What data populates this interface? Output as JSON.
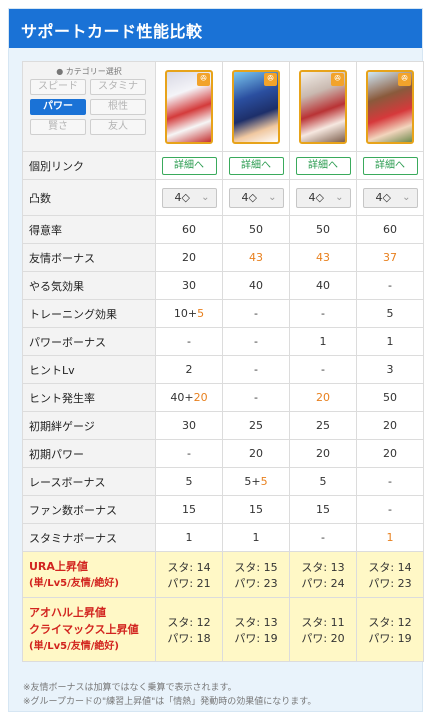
{
  "header": {
    "title": "サポートカード性能比較"
  },
  "category": {
    "title": "● カテゴリー選択",
    "options": [
      {
        "label": "スピード",
        "active": false
      },
      {
        "label": "スタミナ",
        "active": false
      },
      {
        "label": "パワー",
        "active": true
      },
      {
        "label": "根性",
        "active": false
      },
      {
        "label": "賢さ",
        "active": false
      },
      {
        "label": "友人",
        "active": false
      }
    ]
  },
  "cards": [
    {
      "badge_icon": "power-type-icon",
      "badge_glyph": "ꔮ"
    },
    {
      "badge_icon": "power-type-icon",
      "badge_glyph": "ꔮ"
    },
    {
      "badge_icon": "power-type-icon",
      "badge_glyph": "ꔮ"
    },
    {
      "badge_icon": "power-type-icon",
      "badge_glyph": "ꔮ"
    }
  ],
  "rows": {
    "link": {
      "label": "個別リンク",
      "button": "詳細へ"
    },
    "limitbreak": {
      "label": "凸数",
      "value": "4",
      "icon": "diamond-icon"
    },
    "specialty": {
      "label": "得意率",
      "values": [
        "60",
        "50",
        "50",
        "60"
      ]
    },
    "friendship": {
      "label": "友情ボーナス",
      "values": [
        "20",
        "43",
        "43",
        "37"
      ]
    },
    "motivation": {
      "label": "やる気効果",
      "values": [
        "30",
        "40",
        "40",
        "-"
      ]
    },
    "training": {
      "label": "トレーニング効果",
      "v1a": "10+",
      "v1b": "5",
      "values": [
        "-",
        "-",
        "5"
      ]
    },
    "powerbonus": {
      "label": "パワーボーナス",
      "values": [
        "-",
        "-",
        "1",
        "1"
      ]
    },
    "hintlv": {
      "label": "ヒントLv",
      "values": [
        "2",
        "-",
        "-",
        "3"
      ]
    },
    "hintrate": {
      "label": "ヒント発生率",
      "v1a": "40+",
      "v1b": "20",
      "values": [
        "-",
        "20",
        "50"
      ]
    },
    "initbond": {
      "label": "初期絆ゲージ",
      "values": [
        "30",
        "25",
        "25",
        "20"
      ]
    },
    "initpower": {
      "label": "初期パワー",
      "values": [
        "-",
        "20",
        "20",
        "20"
      ]
    },
    "race": {
      "label": "レースボーナス",
      "v1": "5",
      "v2a": "5+",
      "v2b": "5",
      "values": [
        "5",
        "-"
      ]
    },
    "fans": {
      "label": "ファン数ボーナス",
      "values": [
        "15",
        "15",
        "15",
        "-"
      ]
    },
    "stamina": {
      "label": "スタミナボーナス",
      "values": [
        "1",
        "1",
        "-",
        "1"
      ]
    },
    "ura": {
      "label": "URA上昇値",
      "sub": "(単/Lv5/友情/絶好)",
      "values": [
        [
          "スタ: 14",
          "パワ: 21"
        ],
        [
          "スタ: 15",
          "パワ: 23"
        ],
        [
          "スタ: 13",
          "パワ: 24"
        ],
        [
          "スタ: 14",
          "パワ: 23"
        ]
      ]
    },
    "aoharu": {
      "label1": "アオハル上昇値",
      "label2": "クライマックス上昇値",
      "sub": "(単/Lv5/友情/絶好)",
      "values": [
        [
          "スタ: 12",
          "パワ: 18"
        ],
        [
          "スタ: 13",
          "パワ: 19"
        ],
        [
          "スタ: 11",
          "パワ: 20"
        ],
        [
          "スタ: 12",
          "パワ: 19"
        ]
      ]
    }
  },
  "notes": [
    "※友情ボーナスは加算ではなく乗算で表示されます。",
    "※グループカードの\"練習上昇値\"は「情熱」発動時の効果値になります。"
  ],
  "colors": {
    "header": "#1a72d6",
    "accent_orange": "#e8801e",
    "detail_green": "#2a9b4f",
    "highlight_red": "#d2241f",
    "yellow_row": "#fff8c6"
  }
}
